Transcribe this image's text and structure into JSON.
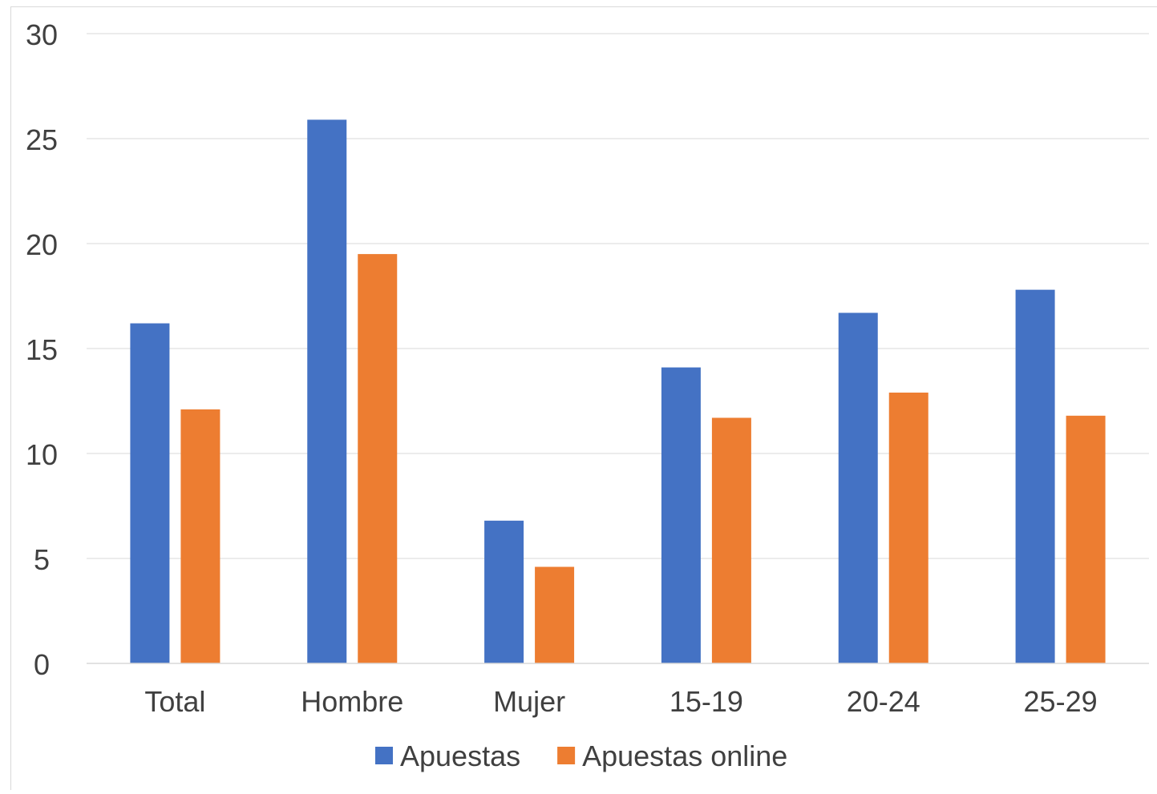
{
  "chart_data": {
    "type": "bar",
    "title": "",
    "xlabel": "",
    "ylabel": "",
    "categories": [
      "Total",
      "Hombre",
      "Mujer",
      "15-19",
      "20-24",
      "25-29"
    ],
    "series": [
      {
        "name": "Apuestas",
        "color": "#4472c4",
        "values": [
          16.2,
          25.9,
          6.8,
          14.1,
          16.7,
          17.8
        ]
      },
      {
        "name": "Apuestas online",
        "color": "#ed7d31",
        "values": [
          12.1,
          19.5,
          4.6,
          11.7,
          12.9,
          11.8
        ]
      }
    ],
    "ylim": [
      0,
      30
    ],
    "yticks": [
      0,
      5,
      10,
      15,
      20,
      25,
      30
    ],
    "grid": true,
    "legend": "bottom"
  }
}
